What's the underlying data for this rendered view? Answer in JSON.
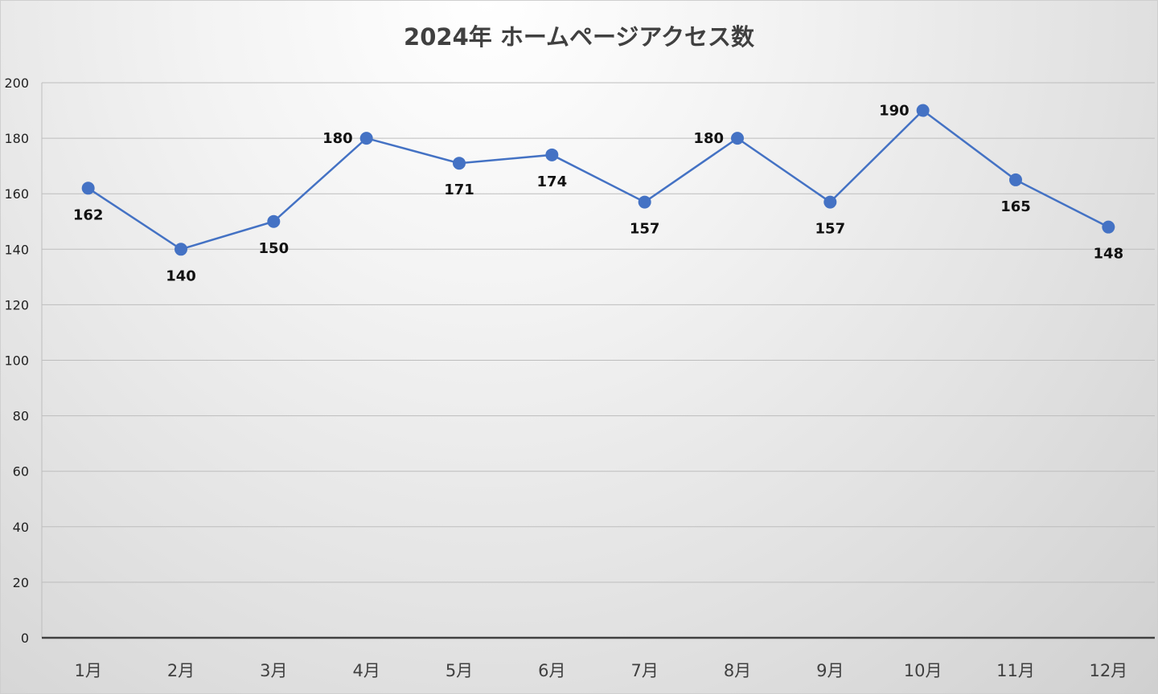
{
  "chart_data": {
    "type": "line",
    "title": "2024年 ホームページアクセス数",
    "xlabel": "",
    "ylabel": "",
    "categories": [
      "1月",
      "2月",
      "3月",
      "4月",
      "5月",
      "6月",
      "7月",
      "8月",
      "9月",
      "10月",
      "11月",
      "12月"
    ],
    "series": [
      {
        "values": [
          162,
          140,
          150,
          180,
          171,
          174,
          157,
          180,
          157,
          190,
          165,
          148
        ],
        "color": "#4472C4",
        "label_positions": [
          "below",
          "below",
          "below",
          "left",
          "below",
          "below",
          "below",
          "left",
          "below",
          "left",
          "below",
          "below"
        ]
      }
    ],
    "ylim": [
      0,
      200
    ],
    "yticks": [
      0,
      20,
      40,
      60,
      80,
      100,
      120,
      140,
      160,
      180,
      200
    ],
    "grid": true,
    "legend": "none",
    "data_labels": true
  }
}
